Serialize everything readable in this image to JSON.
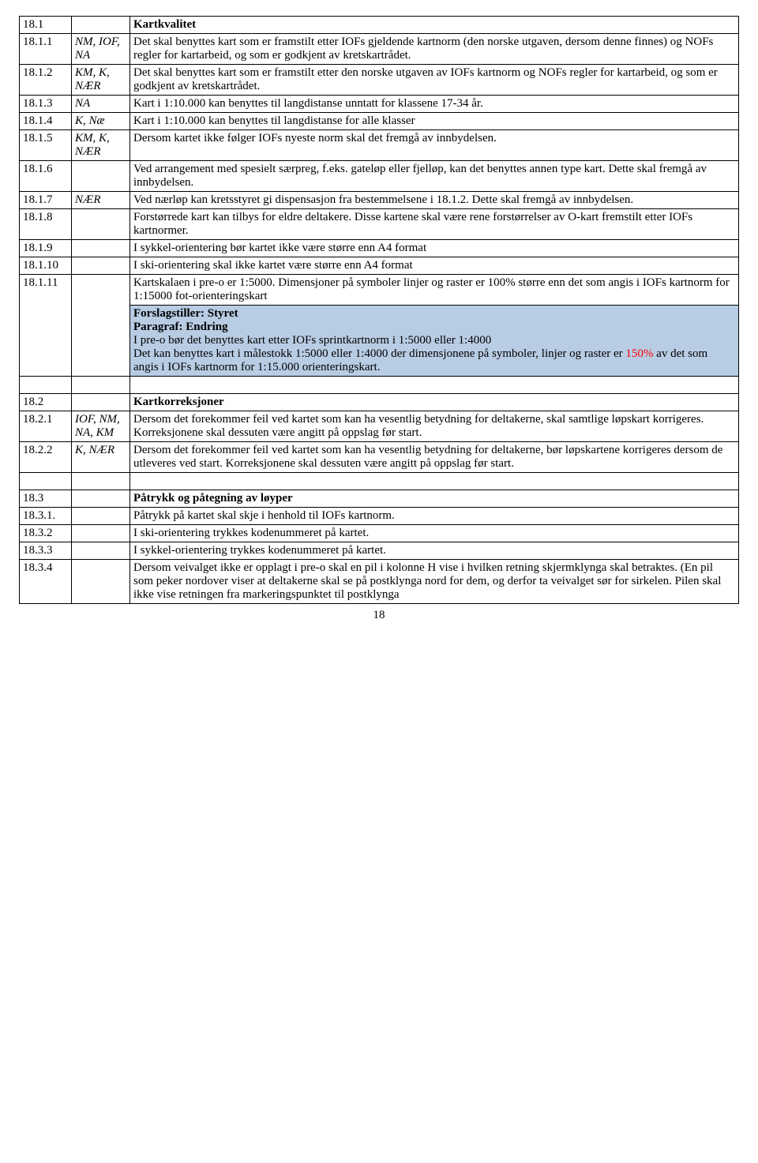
{
  "colors": {
    "highlight": "#b8cce4",
    "red": "#ff0000",
    "border": "#000000",
    "background": "#ffffff",
    "text": "#000000"
  },
  "page_number": "18",
  "rows": [
    {
      "num": "18.1",
      "src": "",
      "heading": "Kartkvalitet"
    },
    {
      "num": "18.1.1",
      "src": "NM, IOF, NA",
      "src_italic": true,
      "txt": "Det skal benyttes kart som er framstilt etter IOFs gjeldende kartnorm (den norske utgaven, dersom denne finnes) og NOFs regler for kartarbeid, og som er godkjent av kretskartrådet."
    },
    {
      "num": "18.1.2",
      "src": "KM, K, NÆR",
      "src_italic": true,
      "txt": "Det skal benyttes kart som er framstilt etter den norske utgaven av IOFs kartnorm og NOFs regler for kartarbeid, og som er godkjent av kretskartrådet."
    },
    {
      "num": "18.1.3",
      "src": "NA",
      "src_italic": true,
      "txt": "Kart i 1:10.000 kan benyttes til langdistanse unntatt for  klassene 17-34 år."
    },
    {
      "num": "18.1.4",
      "src": "K, Næ",
      "src_italic": true,
      "txt": "Kart i 1:10.000 kan benyttes til langdistanse for alle klasser"
    },
    {
      "num": "18.1.5",
      "src": "KM, K, NÆR",
      "src_italic": true,
      "txt": "Dersom kartet ikke følger IOFs nyeste norm skal det fremgå av innbydelsen."
    },
    {
      "num": "18.1.6",
      "src": "",
      "txt": "Ved arrangement med spesielt særpreg, f.eks. gateløp eller fjelløp, kan det benyttes annen type kart. Dette skal fremgå av innbydelsen."
    },
    {
      "num": "18.1.7",
      "src": "NÆR",
      "src_italic": true,
      "txt": "Ved nærløp kan kretsstyret gi dispensasjon fra bestemmelsene i 18.1.2. Dette skal fremgå av innbydelsen."
    },
    {
      "num": "18.1.8",
      "src": "",
      "txt": "Forstørrede kart kan tilbys for eldre deltakere. Disse kartene skal være rene forstørrelser av O-kart fremstilt etter IOFs kartnormer."
    },
    {
      "num": "18.1.9",
      "src": "",
      "txt": "I sykkel-orientering bør kartet ikke være større enn A4 format"
    },
    {
      "num": "18.1.10",
      "src": "",
      "txt": "I ski-orientering skal ikke kartet være større enn A4 format"
    },
    {
      "num": "18.1.11",
      "src": "",
      "txt_main": "Kartskalaen i pre-o er 1:5000. Dimensjoner på symboler linjer og raster er 100% større enn det som angis i IOFs kartnorm for 1:15000 fot-orienteringskart",
      "hl_line1_bold": "Forslagstiller: Styret",
      "hl_line2_bold": "Paragraf:  Endring",
      "hl_line3": "I pre-o bør det benyttes kart etter IOFs sprintkartnorm i 1:5000 eller 1:4000",
      "hl_line4": "Det kan benyttes kart i målestokk 1:5000 eller 1:4000 der dimensjonene på symboler, linjer og raster er ",
      "hl_red": "150%",
      "hl_line4b": " av det som angis i IOFs kartnorm for 1:15.000 orienteringskart."
    },
    {
      "spacer": true
    },
    {
      "num": "18.2",
      "src": "",
      "heading": "Kartkorreksjoner"
    },
    {
      "num": "18.2.1",
      "src": "IOF, NM, NA, KM",
      "src_italic": true,
      "txt": "Dersom det forekommer feil ved kartet som kan ha vesentlig betydning for deltakerne, skal samtlige løpskart korrigeres. Korreksjonene skal dessuten være angitt på oppslag før start."
    },
    {
      "num": "18.2.2",
      "src": "K, NÆR",
      "src_italic": true,
      "txt": "Dersom det forekommer feil ved kartet som kan ha vesentlig betydning for deltakerne, bør løpskartene korrigeres dersom de utleveres ved start. Korreksjonene skal dessuten være angitt på oppslag før start."
    },
    {
      "spacer": true
    },
    {
      "num": "18.3",
      "src": "",
      "heading": "Påtrykk og påtegning av løyper"
    },
    {
      "num": "18.3.1.",
      "src": "",
      "txt": "Påtrykk på kartet skal skje i henhold til IOFs kartnorm."
    },
    {
      "num": "18.3.2",
      "src": "",
      "txt": "I ski-orientering trykkes kodenummeret på kartet."
    },
    {
      "num": "18.3.3",
      "src": "",
      "txt": "I sykkel-orientering trykkes kodenummeret på kartet."
    },
    {
      "num": "18.3.4",
      "src": "",
      "txt": "Dersom veivalget ikke er opplagt i pre-o skal en pil i kolonne H vise i hvilken retning skjermklynga skal betraktes. (En pil som peker nordover viser at deltakerne skal se på postklynga nord for dem, og derfor ta veivalget sør for sirkelen. Pilen skal ikke vise retningen fra markeringspunktet til postklynga"
    }
  ]
}
